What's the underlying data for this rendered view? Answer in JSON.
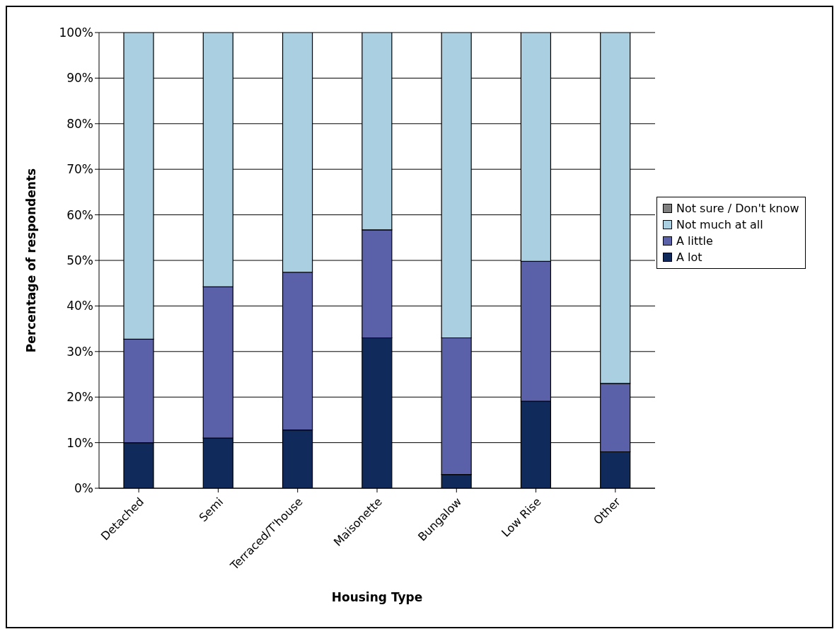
{
  "chart_data": {
    "type": "bar",
    "stacked": true,
    "xlabel": "Housing Type",
    "ylabel": "Percentage of respondents",
    "categories": [
      "Detached",
      "Semi",
      "Terraced/T'house",
      "Maisonette",
      "Bungalow",
      "Low Rise",
      "Other"
    ],
    "series": [
      {
        "name": "A lot",
        "color": "#112a5c",
        "values": [
          10,
          11,
          12.8,
          33,
          3,
          19.1,
          8
        ]
      },
      {
        "name": "A little",
        "color": "#5a61a8",
        "values": [
          22.7,
          33.2,
          34.6,
          23.7,
          30,
          30.7,
          15
        ]
      },
      {
        "name": "Not much at all",
        "color": "#a9cfe1",
        "values": [
          67.3,
          55.8,
          52.6,
          43.3,
          67,
          50.2,
          77
        ]
      },
      {
        "name": "Not sure / Don't know",
        "color": "#808080",
        "values": [
          0,
          0,
          0,
          0,
          0,
          0,
          0
        ]
      }
    ],
    "ylim": [
      0,
      100
    ],
    "yticks": [
      {
        "value": 0,
        "label": "0%"
      },
      {
        "value": 10,
        "label": "10%"
      },
      {
        "value": 20,
        "label": "20%"
      },
      {
        "value": 30,
        "label": "30%"
      },
      {
        "value": 40,
        "label": "40%"
      },
      {
        "value": 50,
        "label": "50%"
      },
      {
        "value": 60,
        "label": "60%"
      },
      {
        "value": 70,
        "label": "70%"
      },
      {
        "value": 80,
        "label": "80%"
      },
      {
        "value": 90,
        "label": "90%"
      },
      {
        "value": 100,
        "label": "100%"
      }
    ],
    "grid": "y",
    "legend": "right"
  }
}
